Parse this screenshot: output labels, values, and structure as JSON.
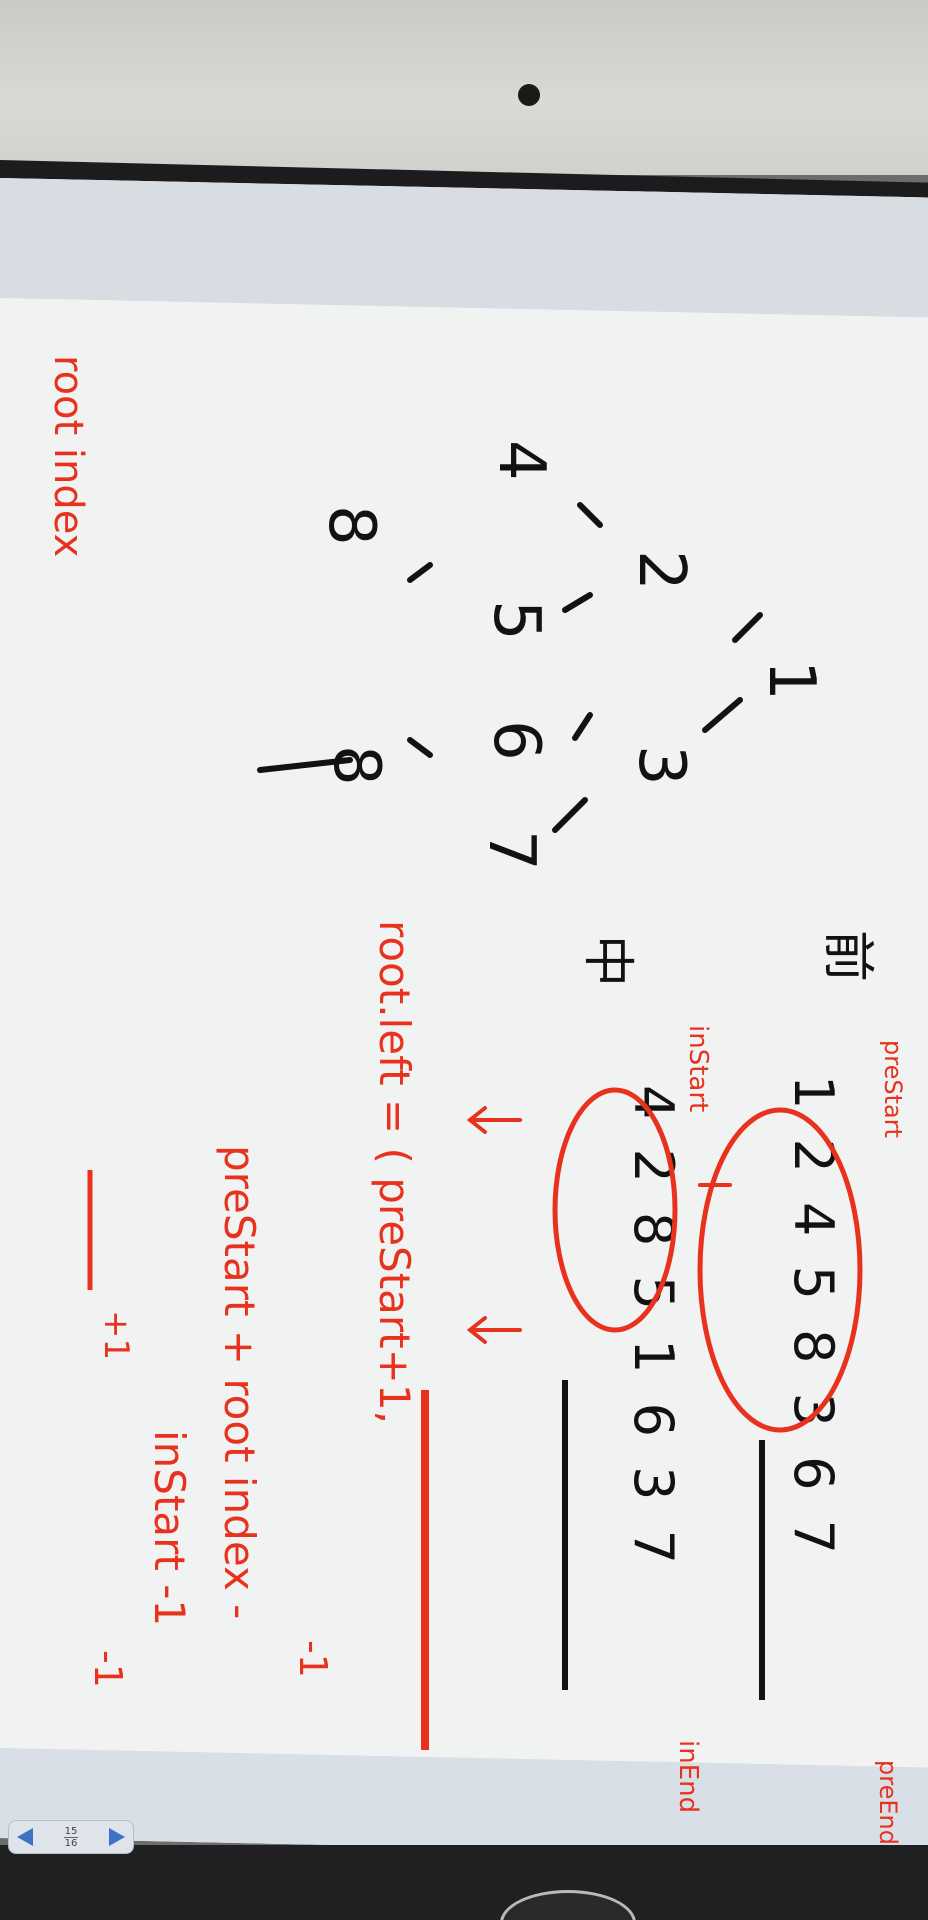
{
  "notes": {
    "root_index": "root index",
    "label_pre": "前",
    "label_in": "中",
    "pre_seq": "1 2 4 5 8 3 6 7",
    "in_seq": "4 2 8 5 1 6 3 7",
    "pre_start": "preStart",
    "pre_end": "preEnd",
    "in_start": "inStart",
    "in_end": "inEnd",
    "root_left": "root.left = ( preStart+1,",
    "pre_start_plus": "preStart + root index -",
    "in_start_minus": "inStart -1",
    "plus_one": "+1",
    "minus_one": "-1",
    "tree_nodes": [
      "1",
      "2",
      "3",
      "4",
      "5",
      "6",
      "7",
      "8",
      "8"
    ]
  },
  "viewer": {
    "page_current": "15",
    "page_total": "16"
  },
  "colors": {
    "red_ink": "#e8321e",
    "black_ink": "#121212"
  }
}
